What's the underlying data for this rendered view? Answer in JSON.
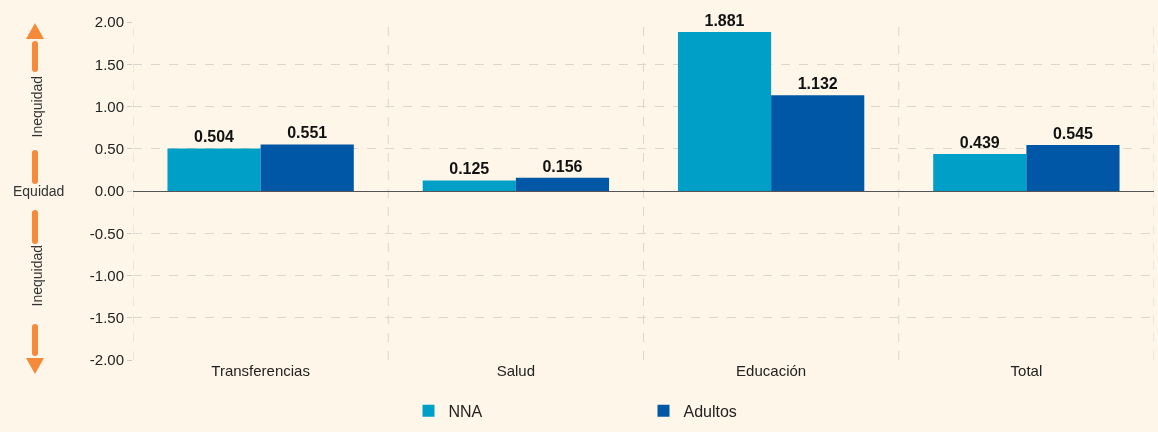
{
  "chart_data": {
    "type": "bar",
    "categories": [
      "Transferencias",
      "Salud",
      "Educación",
      "Total"
    ],
    "series": [
      {
        "name": "NNA",
        "color": "#009fc7",
        "values": [
          0.504,
          0.125,
          1.881,
          0.439
        ]
      },
      {
        "name": "Adultos",
        "color": "#0057a6",
        "values": [
          0.551,
          0.156,
          1.132,
          0.545
        ]
      }
    ],
    "ylim": [
      -2,
      2
    ],
    "yticks": [
      {
        "value": 2,
        "label": "2.00"
      },
      {
        "value": 1.5,
        "label": "1.50"
      },
      {
        "value": 1,
        "label": "1.00"
      },
      {
        "value": 0.5,
        "label": "0.50"
      },
      {
        "value": 0,
        "label": "0.00"
      },
      {
        "value": -0.5,
        "label": "-0.50"
      },
      {
        "value": -1,
        "label": "-1.00"
      },
      {
        "value": -1.5,
        "label": "-1.50"
      },
      {
        "value": -2,
        "label": "-2.00"
      }
    ],
    "grid": true,
    "legend": "bottom",
    "data_labels": true,
    "annotations": [
      "Inequidad",
      "Equidad",
      "Inequidad"
    ]
  }
}
